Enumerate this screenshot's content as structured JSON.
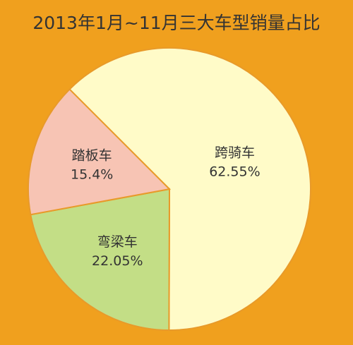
{
  "chart_data": {
    "type": "pie",
    "title": "2013年1月~11月三大车型销量占比",
    "categories": [
      "跨骑车",
      "弯梁车",
      "踏板车"
    ],
    "values": [
      62.55,
      22.05,
      15.4
    ],
    "value_labels": [
      "62.55%",
      "22.05%",
      "15.4%"
    ],
    "colors": [
      "#fffbc8",
      "#c3de86",
      "#f7c4b4"
    ]
  }
}
